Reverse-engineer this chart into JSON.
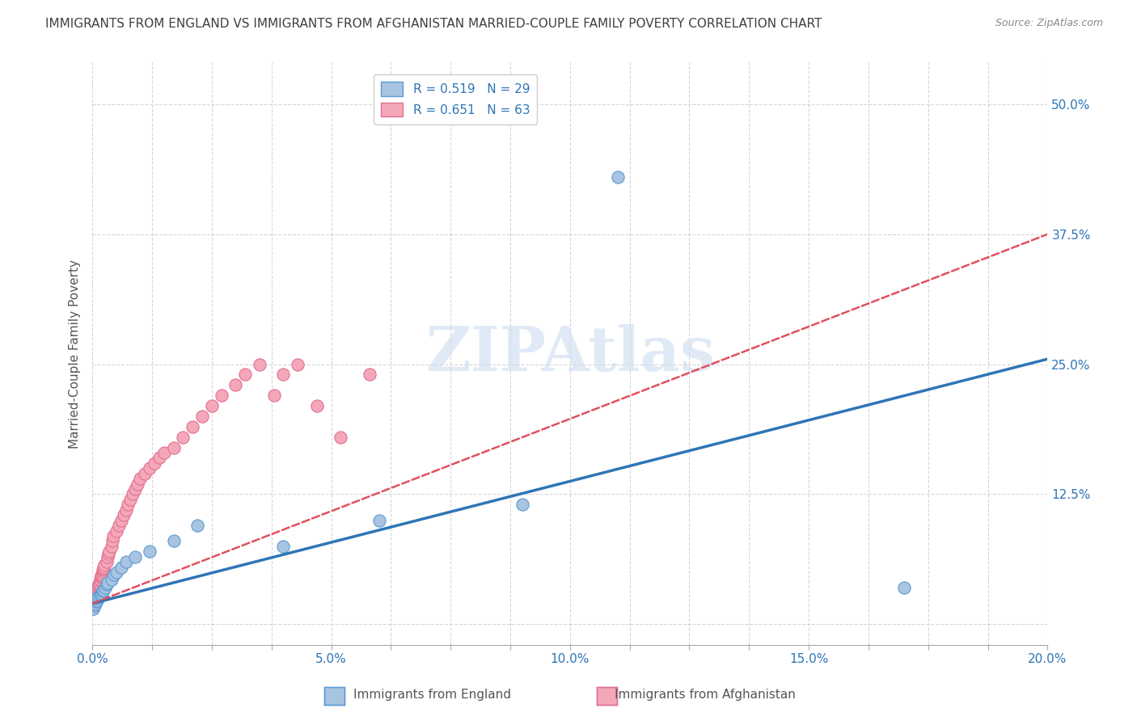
{
  "title": "IMMIGRANTS FROM ENGLAND VS IMMIGRANTS FROM AFGHANISTAN MARRIED-COUPLE FAMILY POVERTY CORRELATION CHART",
  "source": "Source: ZipAtlas.com",
  "ylabel": "Married-Couple Family Poverty",
  "xlim": [
    0.0,
    0.2
  ],
  "ylim": [
    -0.02,
    0.54
  ],
  "ytick_positions": [
    0.0,
    0.125,
    0.25,
    0.375,
    0.5
  ],
  "ytick_labels": [
    "",
    "12.5%",
    "25.0%",
    "37.5%",
    "50.0%"
  ],
  "watermark_text": "ZIPAtlas",
  "england_fill_color": "#a8c4e0",
  "england_edge_color": "#5b9bd5",
  "afghanistan_fill_color": "#f4a7b9",
  "afghanistan_edge_color": "#e07090",
  "england_line_color": "#2e75b6",
  "afghanistan_line_color": "#e05060",
  "R_england": 0.519,
  "N_england": 29,
  "R_afghanistan": 0.651,
  "N_afghanistan": 63,
  "legend_label_england": "Immigrants from England",
  "legend_label_afghanistan": "Immigrants from Afghanistan",
  "background_color": "#ffffff",
  "grid_color": "#cccccc",
  "title_color": "#404040",
  "tick_color": "#2e75b6",
  "ylabel_color": "#555555",
  "england_x": [
    0.0002,
    0.0004,
    0.0006,
    0.0008,
    0.001,
    0.0012,
    0.0014,
    0.0016,
    0.0018,
    0.002,
    0.0022,
    0.0024,
    0.0026,
    0.003,
    0.0032,
    0.004,
    0.0045,
    0.005,
    0.006,
    0.007,
    0.009,
    0.012,
    0.017,
    0.022,
    0.04,
    0.06,
    0.09,
    0.11,
    0.17
  ],
  "england_y": [
    0.015,
    0.018,
    0.02,
    0.022,
    0.023,
    0.025,
    0.027,
    0.028,
    0.028,
    0.03,
    0.032,
    0.033,
    0.035,
    0.038,
    0.04,
    0.043,
    0.048,
    0.05,
    0.055,
    0.06,
    0.065,
    0.07,
    0.08,
    0.095,
    0.075,
    0.1,
    0.115,
    0.43,
    0.035
  ],
  "afghanistan_x": [
    0.0001,
    0.0002,
    0.0003,
    0.0004,
    0.0005,
    0.0006,
    0.0007,
    0.0008,
    0.0009,
    0.001,
    0.0011,
    0.0012,
    0.0013,
    0.0014,
    0.0015,
    0.0016,
    0.0017,
    0.0018,
    0.0019,
    0.002,
    0.0021,
    0.0022,
    0.0023,
    0.0024,
    0.0025,
    0.003,
    0.0032,
    0.0034,
    0.0036,
    0.004,
    0.0042,
    0.0044,
    0.005,
    0.0055,
    0.006,
    0.0065,
    0.007,
    0.0075,
    0.008,
    0.0085,
    0.009,
    0.0095,
    0.01,
    0.011,
    0.012,
    0.013,
    0.014,
    0.015,
    0.017,
    0.019,
    0.021,
    0.023,
    0.025,
    0.027,
    0.03,
    0.032,
    0.035,
    0.038,
    0.04,
    0.043,
    0.047,
    0.052,
    0.058
  ],
  "afghanistan_y": [
    0.015,
    0.018,
    0.02,
    0.022,
    0.023,
    0.025,
    0.027,
    0.03,
    0.028,
    0.032,
    0.033,
    0.035,
    0.037,
    0.038,
    0.04,
    0.042,
    0.043,
    0.045,
    0.047,
    0.048,
    0.05,
    0.052,
    0.053,
    0.055,
    0.057,
    0.06,
    0.065,
    0.068,
    0.07,
    0.075,
    0.08,
    0.085,
    0.09,
    0.095,
    0.1,
    0.105,
    0.11,
    0.115,
    0.12,
    0.125,
    0.13,
    0.135,
    0.14,
    0.145,
    0.15,
    0.155,
    0.16,
    0.165,
    0.17,
    0.18,
    0.19,
    0.2,
    0.21,
    0.22,
    0.23,
    0.24,
    0.25,
    0.22,
    0.24,
    0.25,
    0.21,
    0.18,
    0.24
  ],
  "eng_line_x0": 0.0,
  "eng_line_y0": 0.02,
  "eng_line_x1": 0.2,
  "eng_line_y1": 0.255,
  "afg_line_x0": 0.0,
  "afg_line_y0": 0.02,
  "afg_line_x1": 0.2,
  "afg_line_y1": 0.375
}
